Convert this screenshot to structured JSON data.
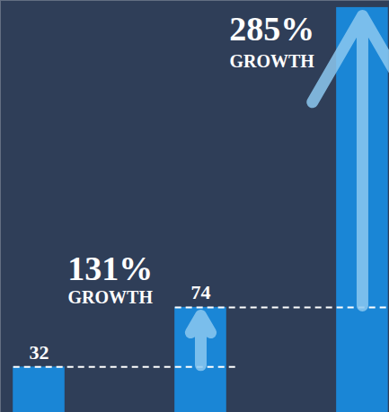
{
  "chart_data": {
    "type": "bar",
    "categories": [
      null,
      null,
      null
    ],
    "values": [
      32,
      74,
      285
    ],
    "value_labels": [
      "32",
      "74",
      null
    ],
    "data_labels": true,
    "color": "#1a86d6",
    "ylim": [
      0,
      290
    ],
    "tick_labels": false,
    "annotations": [
      null,
      "131% GROWTH",
      "285% GROWTH"
    ]
  }
}
